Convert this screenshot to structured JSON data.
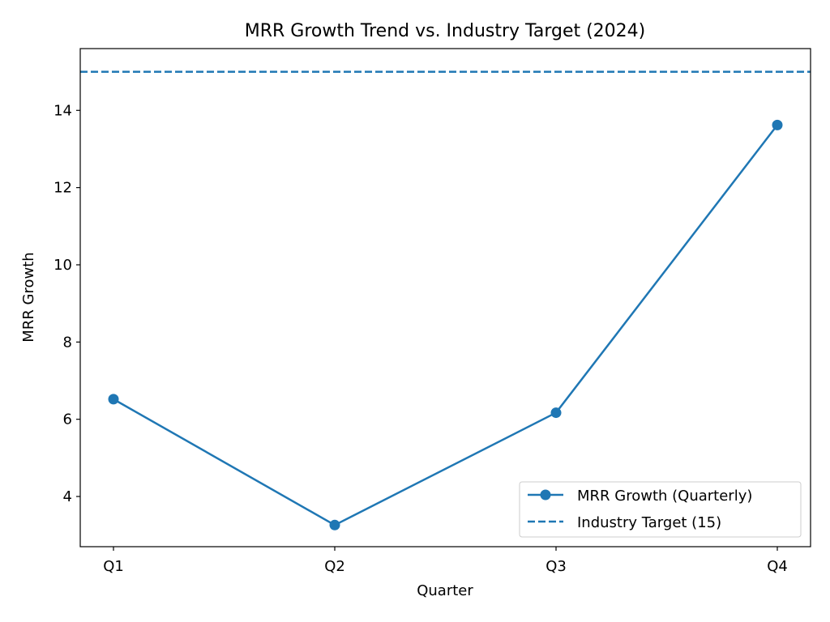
{
  "chart_data": {
    "type": "line",
    "title": "MRR Growth Trend vs. Industry Target (2024)",
    "xlabel": "Quarter",
    "ylabel": "MRR Growth",
    "categories": [
      "Q1",
      "Q2",
      "Q3",
      "Q4"
    ],
    "series": [
      {
        "name": "MRR Growth (Quarterly)",
        "values": [
          6.52,
          3.26,
          6.17,
          13.62
        ],
        "color": "#1f77b4",
        "style": "solid",
        "marker": "circle"
      }
    ],
    "reference_line": {
      "name": "Industry Target (15)",
      "value": 15,
      "color": "#1f77b4",
      "style": "dashed"
    },
    "ylim": [
      2.7,
      15.6
    ],
    "yticks": [
      4,
      6,
      8,
      10,
      12,
      14
    ],
    "grid": false,
    "legend_position": "lower-right"
  }
}
